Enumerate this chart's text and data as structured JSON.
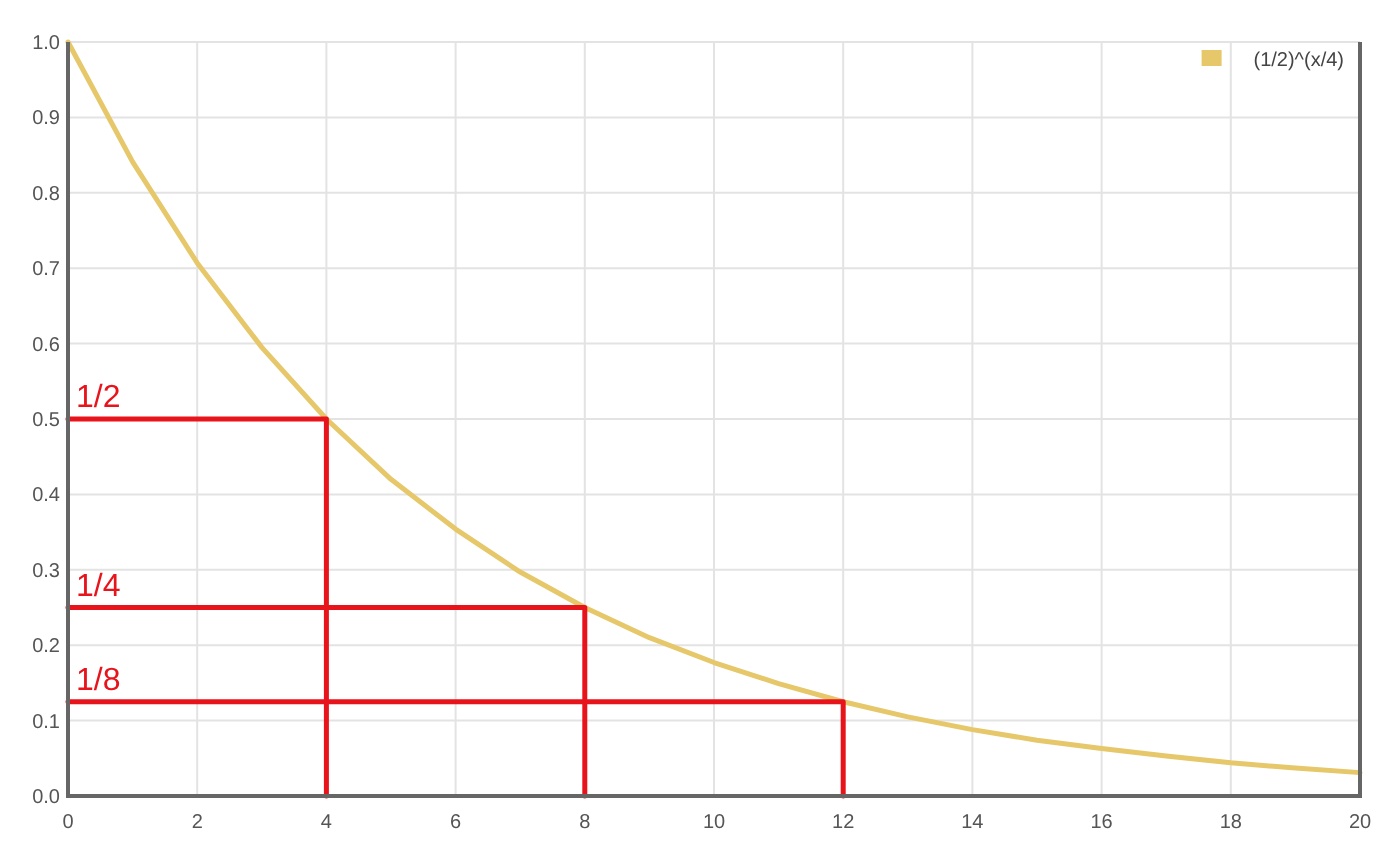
{
  "chart_data": {
    "type": "line",
    "x": [
      0,
      1,
      2,
      3,
      4,
      5,
      6,
      7,
      8,
      9,
      10,
      11,
      12,
      13,
      14,
      15,
      16,
      17,
      18,
      19,
      20
    ],
    "series": [
      {
        "name": "(1/2)^(x/4)",
        "color": "#e6c76a",
        "values": [
          1,
          0.841,
          0.707,
          0.595,
          0.5,
          0.42,
          0.354,
          0.297,
          0.25,
          0.21,
          0.177,
          0.149,
          0.125,
          0.105,
          0.088,
          0.074,
          0.063,
          0.053,
          0.044,
          0.037,
          0.031
        ]
      },
      {
        "x": [
          0,
          4,
          4
        ],
        "color": "#e8141c",
        "values": [
          0.5,
          0.5,
          0
        ]
      },
      {
        "x": [
          0,
          8,
          8
        ],
        "color": "#e8141c",
        "values": [
          0.25,
          0.25,
          0
        ]
      },
      {
        "x": [
          0,
          12,
          12
        ],
        "color": "#e8141c",
        "values": [
          0.125,
          0.125,
          0
        ]
      }
    ],
    "xlim": [
      0,
      20
    ],
    "ylim": [
      0,
      1
    ],
    "xticks": [
      0,
      2,
      4,
      6,
      8,
      10,
      12,
      14,
      16,
      18,
      20
    ],
    "yticks": [
      {
        "value": 0,
        "label": "0.0"
      },
      {
        "value": 0.1,
        "label": "0.1"
      },
      {
        "value": 0.2,
        "label": "0.2"
      },
      {
        "value": 0.3,
        "label": "0.3"
      },
      {
        "value": 0.4,
        "label": "0.4"
      },
      {
        "value": 0.5,
        "label": "0.5"
      },
      {
        "value": 0.6,
        "label": "0.6"
      },
      {
        "value": 0.7,
        "label": "0.7"
      },
      {
        "value": 0.8,
        "label": "0.8"
      },
      {
        "value": 0.9,
        "label": "0.9"
      },
      {
        "value": 1,
        "label": "1.0"
      }
    ],
    "annotations": [
      {
        "text": "1/2",
        "y": 0.5
      },
      {
        "text": "1/4",
        "y": 0.25
      },
      {
        "text": "1/8",
        "y": 0.125
      }
    ],
    "grid": true,
    "legend": "top right",
    "marker": "none",
    "line_style": "solid"
  }
}
